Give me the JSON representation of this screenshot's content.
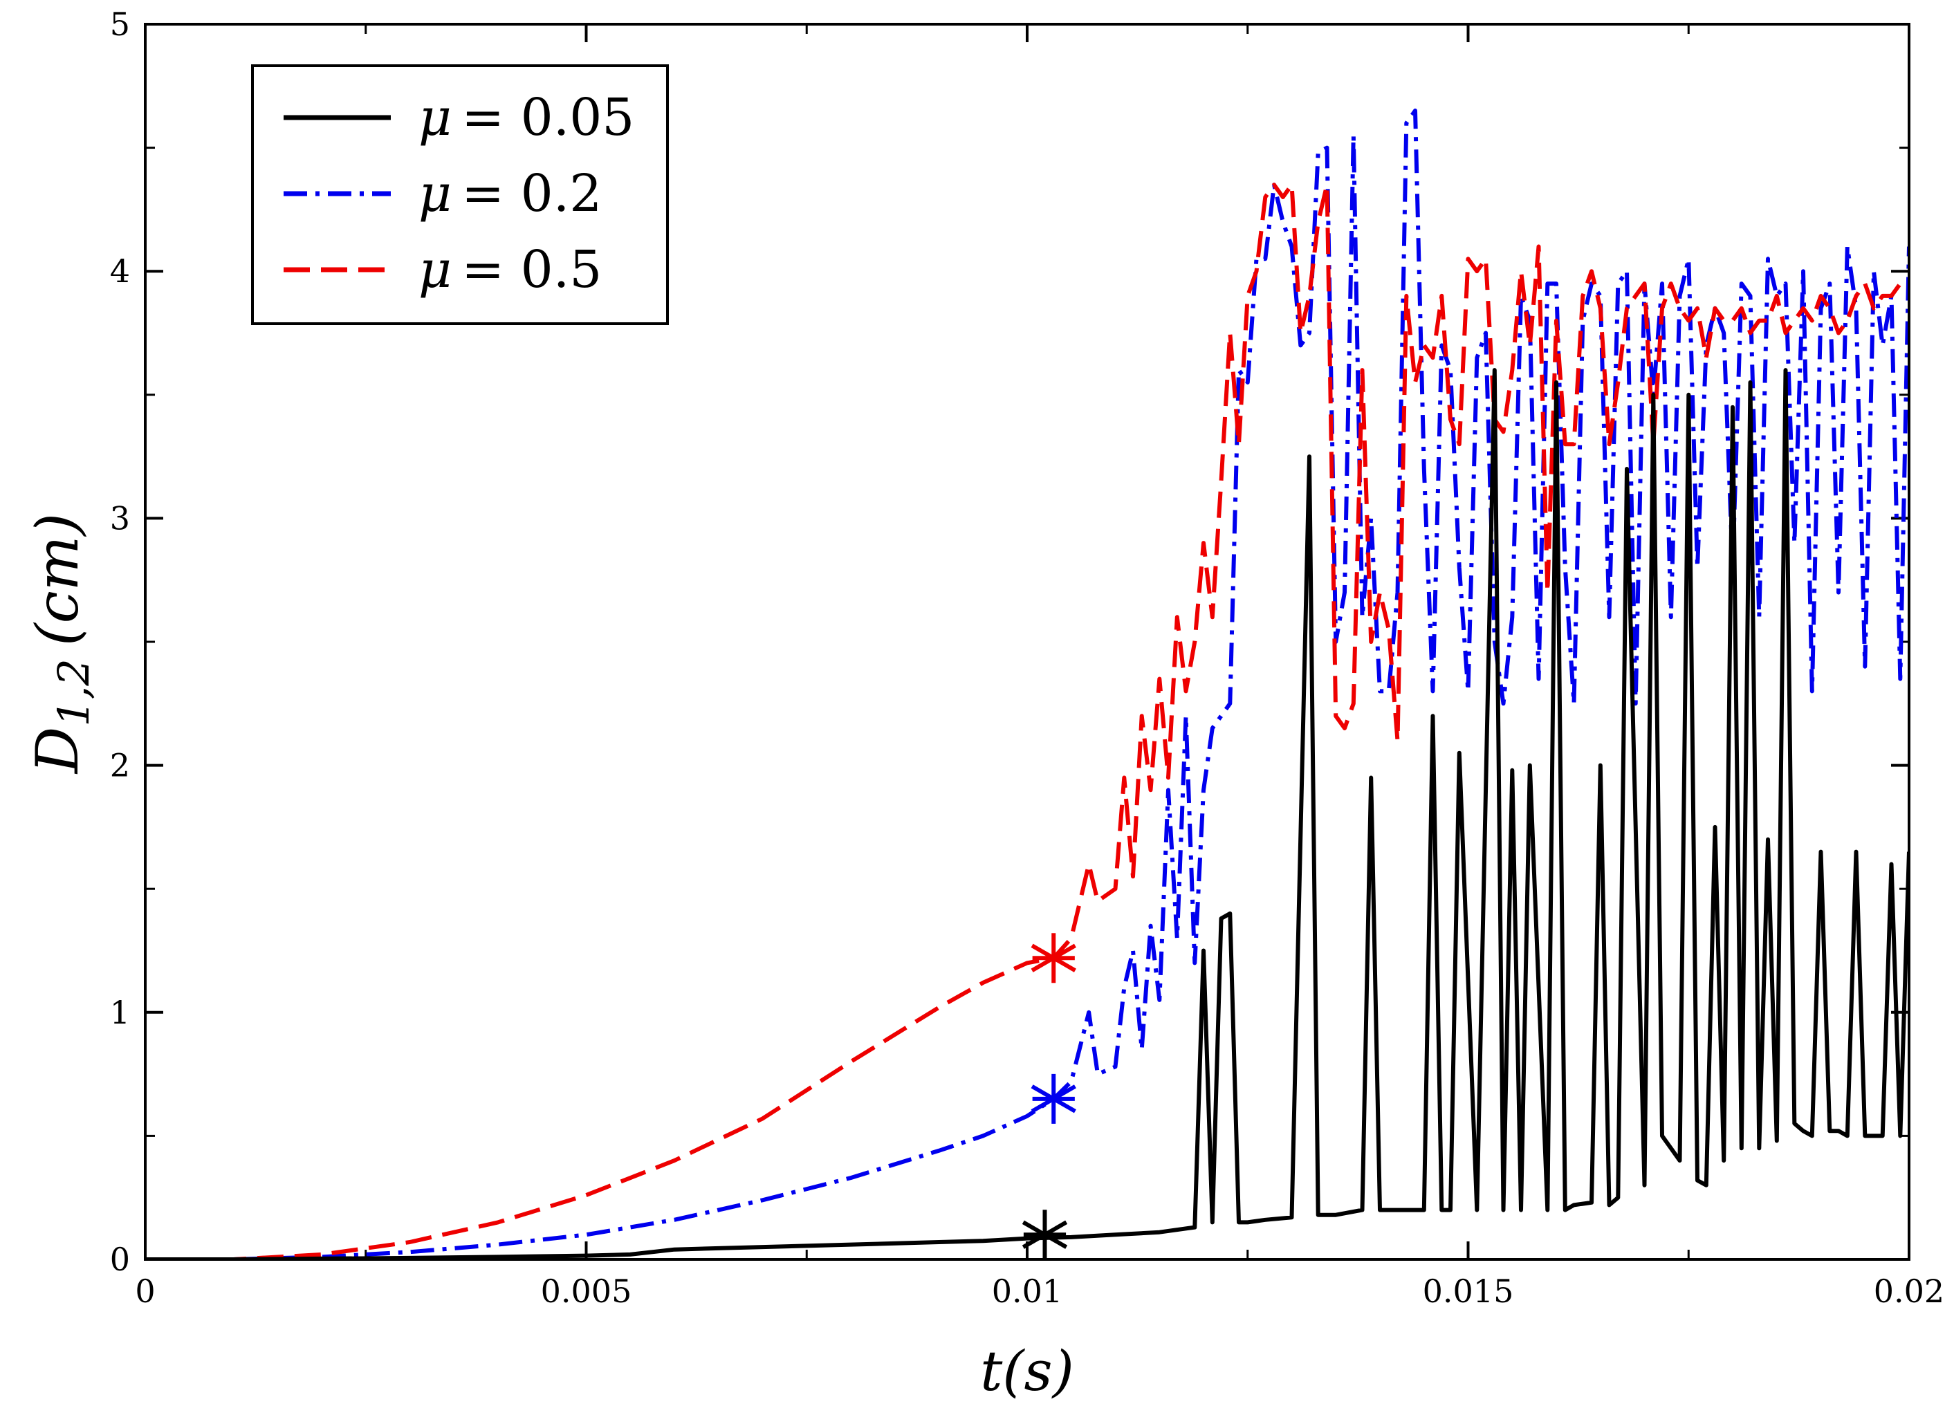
{
  "chart_data": {
    "type": "line",
    "title": "",
    "xlabel": "t(s)",
    "ylabel": "D1,2 (cm)",
    "ylabel_main": "D",
    "ylabel_sub": "1,2",
    "ylabel_unit": "(cm)",
    "xlim": [
      0,
      0.02
    ],
    "ylim": [
      0,
      5
    ],
    "xticks": [
      0,
      0.005,
      0.01,
      0.015,
      0.02
    ],
    "xtick_labels": [
      "0",
      "0.005",
      "0.01",
      "0.015",
      "0.02"
    ],
    "yticks": [
      0,
      1,
      2,
      3,
      4,
      5
    ],
    "ytick_labels": [
      "0",
      "1",
      "2",
      "3",
      "4",
      "5"
    ],
    "grid": false,
    "legend_position": "top-left",
    "series": [
      {
        "name": "μ = 0.05",
        "legend_symbol": "μ",
        "legend_value": "= 0.05",
        "color": "#000000",
        "style": "solid",
        "marker": {
          "x": 0.0102,
          "y": 0.1
        },
        "x": [
          0,
          0.001,
          0.002,
          0.003,
          0.004,
          0.005,
          0.0055,
          0.006,
          0.007,
          0.008,
          0.009,
          0.0095,
          0.01,
          0.0105,
          0.011,
          0.0115,
          0.0119,
          0.012,
          0.0121,
          0.0122,
          0.0123,
          0.0124,
          0.0125,
          0.0127,
          0.013,
          0.0132,
          0.0133,
          0.0134,
          0.0135,
          0.0138,
          0.0139,
          0.014,
          0.0141,
          0.0142,
          0.0145,
          0.0146,
          0.0147,
          0.0148,
          0.0149,
          0.0151,
          0.0153,
          0.0154,
          0.0155,
          0.0156,
          0.0157,
          0.0159,
          0.016,
          0.0161,
          0.0162,
          0.0164,
          0.0165,
          0.0166,
          0.0167,
          0.0168,
          0.017,
          0.0171,
          0.0172,
          0.0173,
          0.0174,
          0.0175,
          0.0176,
          0.0177,
          0.0178,
          0.0179,
          0.018,
          0.0181,
          0.0182,
          0.0183,
          0.0184,
          0.0185,
          0.0186,
          0.0187,
          0.0188,
          0.0189,
          0.019,
          0.0191,
          0.0192,
          0.0193,
          0.0194,
          0.0195,
          0.0196,
          0.0197,
          0.0198,
          0.0199,
          0.02
        ],
        "y": [
          0,
          0,
          0.003,
          0.006,
          0.01,
          0.015,
          0.02,
          0.04,
          0.05,
          0.06,
          0.07,
          0.075,
          0.085,
          0.09,
          0.1,
          0.11,
          0.13,
          1.25,
          0.15,
          1.38,
          1.4,
          0.15,
          0.15,
          0.16,
          0.17,
          3.25,
          0.18,
          0.18,
          0.18,
          0.2,
          1.95,
          0.2,
          0.2,
          0.2,
          0.2,
          2.2,
          0.2,
          0.2,
          2.05,
          0.2,
          3.6,
          0.2,
          1.98,
          0.2,
          2.0,
          0.2,
          3.55,
          0.2,
          0.22,
          0.23,
          2.0,
          0.22,
          0.25,
          3.2,
          0.3,
          3.5,
          0.5,
          0.45,
          0.4,
          3.5,
          0.32,
          0.3,
          1.75,
          0.4,
          3.45,
          0.45,
          3.55,
          0.45,
          1.7,
          0.48,
          3.6,
          0.55,
          0.52,
          0.5,
          1.65,
          0.52,
          0.52,
          0.5,
          1.65,
          0.5,
          0.5,
          0.5,
          1.6,
          0.5,
          1.65
        ]
      },
      {
        "name": "μ = 0.2",
        "legend_symbol": "μ",
        "legend_value": "= 0.2",
        "color": "#0000ee",
        "style": "dashdot",
        "marker": {
          "x": 0.0103,
          "y": 0.65
        },
        "x": [
          0,
          0.001,
          0.002,
          0.003,
          0.004,
          0.005,
          0.006,
          0.007,
          0.008,
          0.009,
          0.0095,
          0.01,
          0.0103,
          0.0105,
          0.0107,
          0.0108,
          0.011,
          0.0111,
          0.0112,
          0.0113,
          0.0114,
          0.0115,
          0.0116,
          0.0117,
          0.0118,
          0.0119,
          0.012,
          0.0121,
          0.0122,
          0.0123,
          0.0124,
          0.0125,
          0.0126,
          0.0127,
          0.0128,
          0.0129,
          0.013,
          0.0131,
          0.0132,
          0.0133,
          0.0134,
          0.0135,
          0.0136,
          0.0137,
          0.0138,
          0.0139,
          0.014,
          0.0141,
          0.0142,
          0.0143,
          0.0144,
          0.0145,
          0.0146,
          0.0147,
          0.0148,
          0.0149,
          0.015,
          0.0151,
          0.0152,
          0.0153,
          0.0154,
          0.0155,
          0.0156,
          0.0157,
          0.0158,
          0.0159,
          0.016,
          0.0161,
          0.0162,
          0.0163,
          0.0164,
          0.0165,
          0.0166,
          0.0167,
          0.0168,
          0.0169,
          0.017,
          0.0171,
          0.0172,
          0.0173,
          0.0174,
          0.0175,
          0.0176,
          0.0177,
          0.0178,
          0.0179,
          0.018,
          0.0181,
          0.0182,
          0.0183,
          0.0184,
          0.0185,
          0.0186,
          0.0187,
          0.0188,
          0.0189,
          0.019,
          0.0191,
          0.0192,
          0.0193,
          0.0194,
          0.0195,
          0.0196,
          0.0197,
          0.0198,
          0.0199,
          0.02
        ],
        "y": [
          0,
          0,
          0.01,
          0.03,
          0.06,
          0.1,
          0.16,
          0.24,
          0.33,
          0.44,
          0.5,
          0.58,
          0.65,
          0.72,
          1.0,
          0.75,
          0.78,
          1.1,
          1.25,
          0.85,
          1.35,
          1.05,
          1.9,
          1.3,
          2.2,
          1.2,
          1.9,
          2.15,
          2.2,
          2.25,
          3.6,
          3.55,
          4.05,
          4.05,
          4.35,
          4.2,
          4.1,
          3.7,
          3.75,
          4.48,
          4.5,
          2.5,
          2.7,
          4.55,
          2.6,
          3.0,
          2.3,
          2.3,
          2.7,
          4.6,
          4.65,
          3.2,
          2.3,
          3.7,
          3.6,
          2.8,
          2.3,
          3.65,
          3.75,
          2.5,
          2.25,
          2.6,
          3.9,
          3.8,
          2.35,
          3.95,
          3.95,
          2.8,
          2.25,
          3.8,
          3.95,
          3.9,
          2.6,
          3.95,
          4.0,
          2.25,
          3.95,
          3.5,
          3.95,
          2.6,
          3.9,
          4.05,
          2.8,
          3.7,
          3.85,
          3.75,
          2.8,
          3.95,
          3.9,
          2.6,
          4.05,
          3.9,
          3.95,
          2.9,
          4.0,
          2.3,
          3.85,
          3.95,
          2.7,
          4.1,
          3.85,
          2.4,
          4.0,
          3.7,
          3.9,
          2.35,
          4.1
        ]
      },
      {
        "name": "μ = 0.5",
        "legend_symbol": "μ",
        "legend_value": "= 0.5",
        "color": "#ee0000",
        "style": "dashed",
        "marker": {
          "x": 0.0103,
          "y": 1.22
        },
        "x": [
          0,
          0.001,
          0.002,
          0.003,
          0.004,
          0.005,
          0.006,
          0.007,
          0.008,
          0.009,
          0.0095,
          0.01,
          0.0103,
          0.0105,
          0.0107,
          0.0108,
          0.011,
          0.0111,
          0.0112,
          0.0113,
          0.0114,
          0.0115,
          0.0116,
          0.0117,
          0.0118,
          0.0119,
          0.012,
          0.0121,
          0.0122,
          0.0123,
          0.0124,
          0.0125,
          0.0126,
          0.0127,
          0.0128,
          0.0129,
          0.013,
          0.0131,
          0.0132,
          0.0133,
          0.0134,
          0.0135,
          0.0136,
          0.0137,
          0.0138,
          0.0139,
          0.014,
          0.0141,
          0.0142,
          0.0143,
          0.0144,
          0.0145,
          0.0146,
          0.0147,
          0.0148,
          0.0149,
          0.015,
          0.0151,
          0.0152,
          0.0153,
          0.0154,
          0.0155,
          0.0156,
          0.0157,
          0.0158,
          0.0159,
          0.016,
          0.0161,
          0.0162,
          0.0163,
          0.0164,
          0.0165,
          0.0166,
          0.0167,
          0.0168,
          0.0169,
          0.017,
          0.0171,
          0.0172,
          0.0173,
          0.0174,
          0.0175,
          0.0176,
          0.0177,
          0.0178,
          0.0179,
          0.018,
          0.0181,
          0.0182,
          0.0183,
          0.0184,
          0.0185,
          0.0186,
          0.0187,
          0.0188,
          0.0189,
          0.019,
          0.0191,
          0.0192,
          0.0193,
          0.0194,
          0.0195,
          0.0196,
          0.0197,
          0.0198,
          0.0199,
          0.02
        ],
        "y": [
          0,
          0,
          0.02,
          0.07,
          0.15,
          0.26,
          0.4,
          0.57,
          0.8,
          1.02,
          1.12,
          1.2,
          1.22,
          1.3,
          1.6,
          1.45,
          1.5,
          1.95,
          1.55,
          2.2,
          1.9,
          2.35,
          1.95,
          2.6,
          2.3,
          2.5,
          2.9,
          2.6,
          3.15,
          3.75,
          3.3,
          3.9,
          4.0,
          4.3,
          4.35,
          4.3,
          4.35,
          3.75,
          3.9,
          4.2,
          4.35,
          2.2,
          2.15,
          2.25,
          3.6,
          2.5,
          2.7,
          2.55,
          2.1,
          3.9,
          3.55,
          3.7,
          3.65,
          3.9,
          3.4,
          3.3,
          4.05,
          4.0,
          4.05,
          3.4,
          3.35,
          3.6,
          4.0,
          3.7,
          4.1,
          2.7,
          3.8,
          3.3,
          3.3,
          3.9,
          4.0,
          3.85,
          3.3,
          3.55,
          3.85,
          3.9,
          3.95,
          3.3,
          3.85,
          3.95,
          3.85,
          3.8,
          3.85,
          3.65,
          3.85,
          3.8,
          3.8,
          3.85,
          3.75,
          3.8,
          3.8,
          3.9,
          3.75,
          3.8,
          3.85,
          3.8,
          3.9,
          3.85,
          3.75,
          3.8,
          3.9,
          3.95,
          3.85,
          3.9,
          3.9,
          3.95,
          3.95
        ]
      }
    ]
  }
}
